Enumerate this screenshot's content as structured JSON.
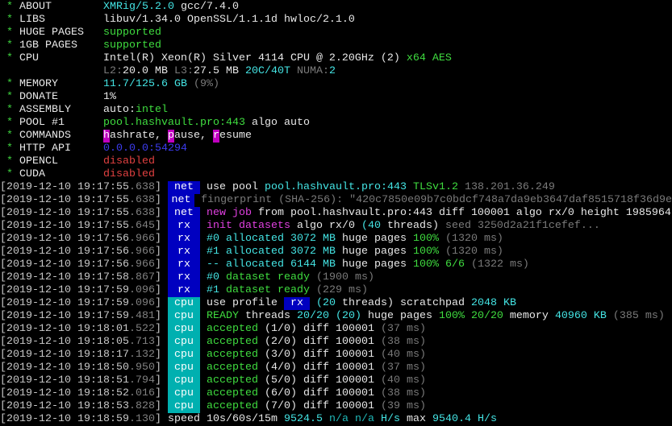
{
  "info": [
    {
      "label": "ABOUT",
      "value": [
        [
          "XMRig/5.2.0",
          "C"
        ],
        [
          " gcc/7.4.0",
          "W"
        ]
      ]
    },
    {
      "label": "LIBS",
      "value": [
        [
          "libuv/1.34.0 OpenSSL/1.1.1d hwloc/2.1.0",
          "W"
        ]
      ]
    },
    {
      "label": "HUGE PAGES",
      "value": [
        [
          "supported",
          "g"
        ]
      ]
    },
    {
      "label": "1GB PAGES",
      "value": [
        [
          "supported",
          "g"
        ]
      ]
    },
    {
      "label": "CPU",
      "value": [
        [
          "Intel(R) Xeon(R) Silver 4114 CPU @ 2.20GHz (2)",
          "W"
        ],
        [
          " x64 AES",
          "g"
        ]
      ]
    },
    {
      "label": "",
      "value": [
        [
          "L2:",
          "k"
        ],
        [
          "20.0 MB ",
          "W"
        ],
        [
          "L3:",
          "k"
        ],
        [
          "27.5 MB ",
          "W"
        ],
        [
          "20C/40T",
          "C"
        ],
        [
          " NUMA:",
          "k"
        ],
        [
          "2",
          "C"
        ]
      ]
    },
    {
      "label": "MEMORY",
      "value": [
        [
          "11.7/125.6 GB",
          "C"
        ],
        [
          " (9%)",
          "k"
        ]
      ]
    },
    {
      "label": "DONATE",
      "value": [
        [
          "1%",
          "W"
        ]
      ]
    },
    {
      "label": "ASSEMBLY",
      "value": [
        [
          "auto:",
          "W"
        ],
        [
          "intel",
          "g"
        ]
      ]
    },
    {
      "label": "POOL #1",
      "value": [
        [
          "pool.hashvault.pro:443",
          "g"
        ],
        [
          " algo auto",
          "W"
        ]
      ]
    },
    {
      "label": "COMMANDS",
      "value": [
        [
          "h",
          "hl"
        ],
        [
          "ashrate, ",
          "W"
        ],
        [
          "p",
          "hl"
        ],
        [
          "ause, ",
          "W"
        ],
        [
          "r",
          "hl"
        ],
        [
          "esume",
          "W"
        ]
      ]
    },
    {
      "label": "HTTP API",
      "value": [
        [
          "0.0.0.0:54294",
          "b"
        ]
      ]
    },
    {
      "label": "OPENCL",
      "value": [
        [
          "disabled",
          "r"
        ]
      ]
    },
    {
      "label": "CUDA",
      "value": [
        [
          "disabled",
          "r"
        ]
      ]
    }
  ],
  "log": [
    {
      "ts": "2019-12-10 19:17:55",
      "ms": ".638",
      "tag": "net",
      "msg": [
        [
          "use pool ",
          "W"
        ],
        [
          "pool.hashvault.pro:443 ",
          "C"
        ],
        [
          "TLSv1.2",
          "g"
        ],
        [
          " 138.201.36.249",
          "k"
        ]
      ]
    },
    {
      "ts": "2019-12-10 19:17:55",
      "ms": ".638",
      "tag": "net",
      "msg": [
        [
          "fingerprint (SHA-256): \"420c7850e09b7c0bdcf748a7da9eb3647daf8515718f36d9e",
          "k"
        ]
      ]
    },
    {
      "ts": "2019-12-10 19:17:55",
      "ms": ".638",
      "tag": "net",
      "msg": [
        [
          "new job",
          "m"
        ],
        [
          " from pool.hashvault.pro:443 diff 100001 algo rx/0 height 1985964",
          "W"
        ]
      ]
    },
    {
      "ts": "2019-12-10 19:17:55",
      "ms": ".645",
      "tag": "rx",
      "msg": [
        [
          "init datasets",
          "m"
        ],
        [
          " algo rx/0 ",
          "W"
        ],
        [
          "(40",
          "C"
        ],
        [
          " threads)",
          "W"
        ],
        [
          " seed 3250d2a21f1cefef...",
          "k"
        ]
      ]
    },
    {
      "ts": "2019-12-10 19:17:56",
      "ms": ".966",
      "tag": "rx",
      "msg": [
        [
          "#0 allocated 3072 MB",
          "C"
        ],
        [
          " huge pages ",
          "W"
        ],
        [
          "100%",
          "g"
        ],
        [
          " (1320 ms)",
          "k"
        ]
      ]
    },
    {
      "ts": "2019-12-10 19:17:56",
      "ms": ".966",
      "tag": "rx",
      "msg": [
        [
          "#1 allocated 3072 MB",
          "C"
        ],
        [
          " huge pages ",
          "W"
        ],
        [
          "100%",
          "g"
        ],
        [
          " (1320 ms)",
          "k"
        ]
      ]
    },
    {
      "ts": "2019-12-10 19:17:56",
      "ms": ".966",
      "tag": "rx",
      "msg": [
        [
          "-- allocated 6144 MB",
          "C"
        ],
        [
          " huge pages ",
          "W"
        ],
        [
          "100% 6/6",
          "g"
        ],
        [
          " (1322 ms)",
          "k"
        ]
      ]
    },
    {
      "ts": "2019-12-10 19:17:58",
      "ms": ".867",
      "tag": "rx",
      "msg": [
        [
          "#0",
          "C"
        ],
        [
          " dataset ready",
          "g"
        ],
        [
          " (1900 ms)",
          "k"
        ]
      ]
    },
    {
      "ts": "2019-12-10 19:17:59",
      "ms": ".096",
      "tag": "rx",
      "msg": [
        [
          "#1",
          "C"
        ],
        [
          " dataset ready",
          "g"
        ],
        [
          " (229 ms)",
          "k"
        ]
      ]
    },
    {
      "ts": "2019-12-10 19:17:59",
      "ms": ".096",
      "tag": "cpu",
      "msg": [
        [
          "use profile ",
          "W"
        ],
        [
          " rx ",
          "tagb"
        ],
        [
          " (20",
          "C"
        ],
        [
          " threads)",
          "W"
        ],
        [
          " scratchpad ",
          "W"
        ],
        [
          "2048 KB",
          "C"
        ]
      ]
    },
    {
      "ts": "2019-12-10 19:17:59",
      "ms": ".481",
      "tag": "cpu",
      "msg": [
        [
          "READY",
          "g"
        ],
        [
          " threads ",
          "W"
        ],
        [
          "20/20 (20)",
          "C"
        ],
        [
          " huge pages ",
          "W"
        ],
        [
          "100% 20/20",
          "g"
        ],
        [
          " memory ",
          "W"
        ],
        [
          "40960 KB",
          "C"
        ],
        [
          " (385 ms)",
          "k"
        ]
      ]
    },
    {
      "ts": "2019-12-10 19:18:01",
      "ms": ".522",
      "tag": "cpu",
      "msg": [
        [
          "accepted",
          "g"
        ],
        [
          " (1/0) diff 100001",
          "W"
        ],
        [
          " (37 ms)",
          "k"
        ]
      ]
    },
    {
      "ts": "2019-12-10 19:18:05",
      "ms": ".713",
      "tag": "cpu",
      "msg": [
        [
          "accepted",
          "g"
        ],
        [
          " (2/0) diff 100001",
          "W"
        ],
        [
          " (38 ms)",
          "k"
        ]
      ]
    },
    {
      "ts": "2019-12-10 19:18:17",
      "ms": ".132",
      "tag": "cpu",
      "msg": [
        [
          "accepted",
          "g"
        ],
        [
          " (3/0) diff 100001",
          "W"
        ],
        [
          " (40 ms)",
          "k"
        ]
      ]
    },
    {
      "ts": "2019-12-10 19:18:50",
      "ms": ".950",
      "tag": "cpu",
      "msg": [
        [
          "accepted",
          "g"
        ],
        [
          " (4/0) diff 100001",
          "W"
        ],
        [
          " (37 ms)",
          "k"
        ]
      ]
    },
    {
      "ts": "2019-12-10 19:18:51",
      "ms": ".794",
      "tag": "cpu",
      "msg": [
        [
          "accepted",
          "g"
        ],
        [
          " (5/0) diff 100001",
          "W"
        ],
        [
          " (40 ms)",
          "k"
        ]
      ]
    },
    {
      "ts": "2019-12-10 19:18:52",
      "ms": ".016",
      "tag": "cpu",
      "msg": [
        [
          "accepted",
          "g"
        ],
        [
          " (6/0) diff 100001",
          "W"
        ],
        [
          " (38 ms)",
          "k"
        ]
      ]
    },
    {
      "ts": "2019-12-10 19:18:53",
      "ms": ".828",
      "tag": "cpu",
      "msg": [
        [
          "accepted",
          "g"
        ],
        [
          " (7/0) diff 100001",
          "W"
        ],
        [
          " (39 ms)",
          "k"
        ]
      ]
    },
    {
      "ts": "2019-12-10 19:18:59",
      "ms": ".130",
      "tag": "",
      "msg": [
        [
          "speed 10s/60s/15m ",
          "W"
        ],
        [
          "9524.5",
          "C"
        ],
        [
          " n/a n/a",
          "c"
        ],
        [
          " H/s",
          "C"
        ],
        [
          " max ",
          "W"
        ],
        [
          "9540.4 H/s",
          "C"
        ]
      ]
    }
  ],
  "colors": {
    "tag_net_rx": "#0000c0",
    "tag_cpu": "#00b0b0",
    "highlight": "#c000c0",
    "star": "#3fd13f"
  }
}
